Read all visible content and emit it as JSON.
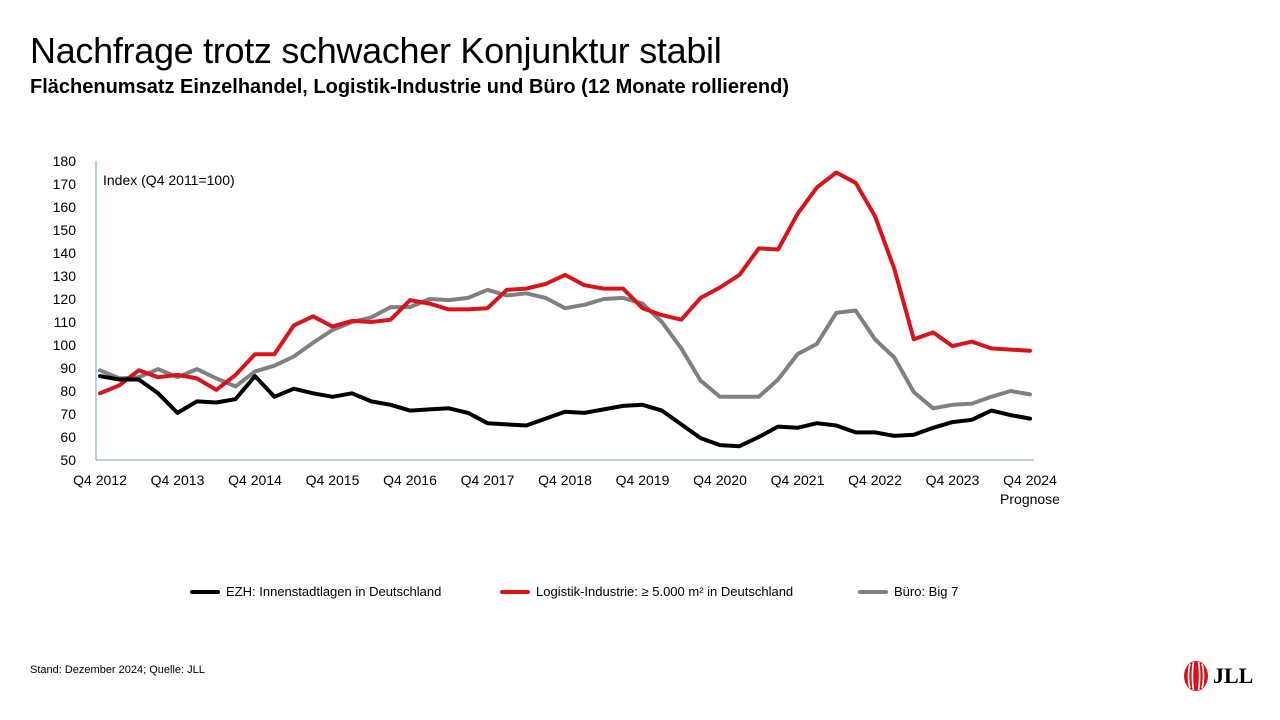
{
  "header": {
    "title": "Nachfrage trotz schwacher Konjunktur stabil",
    "subtitle": "Flächenumsatz Einzelhandel, Logistik-Industrie und Büro (12 Monate rollierend)"
  },
  "chart_data": {
    "type": "line",
    "annotation": "Index (Q4 2011=100)",
    "ylim": [
      50,
      180
    ],
    "yticks": [
      50,
      60,
      70,
      80,
      90,
      100,
      110,
      120,
      130,
      140,
      150,
      160,
      170,
      180
    ],
    "xticks": [
      {
        "label": "Q4 2012",
        "index": 0
      },
      {
        "label": "Q4 2013",
        "index": 4
      },
      {
        "label": "Q4 2014",
        "index": 8
      },
      {
        "label": "Q4 2015",
        "index": 12
      },
      {
        "label": "Q4 2016",
        "index": 16
      },
      {
        "label": "Q4 2017",
        "index": 20
      },
      {
        "label": "Q4 2018",
        "index": 24
      },
      {
        "label": "Q4 2019",
        "index": 28
      },
      {
        "label": "Q4 2020",
        "index": 32
      },
      {
        "label": "Q4 2021",
        "index": 36
      },
      {
        "label": "Q4 2022",
        "index": 40
      },
      {
        "label": "Q4 2023",
        "index": 44
      },
      {
        "label": "Q4 2024",
        "index": 48
      }
    ],
    "xtick_sublabel": "Prognose",
    "grid": false,
    "legend_position": "bottom",
    "series": [
      {
        "name": "EZH: Innenstadtlagen in Deutschland",
        "color": "#000000",
        "values": [
          86.5,
          85,
          85,
          79,
          70.5,
          75.5,
          75,
          76.5,
          86.5,
          77.5,
          81,
          79,
          77.5,
          79,
          75.5,
          74,
          71.5,
          72,
          72.5,
          70.5,
          66,
          65.5,
          65,
          68,
          71,
          70.5,
          72,
          73.5,
          74,
          71.5,
          65.5,
          59.5,
          56.5,
          56,
          60,
          64.5,
          64,
          66,
          65,
          62,
          62,
          60.5,
          61,
          64,
          66.5,
          67.5,
          71.5,
          69.5,
          68
        ]
      },
      {
        "name": "Logistik-Industrie: ≥ 5.000 m² in Deutschland",
        "color": "#d7141a",
        "values": [
          79,
          82.5,
          89,
          86,
          87,
          85.5,
          80.5,
          87,
          96,
          96,
          108.5,
          112.5,
          108,
          110.5,
          110,
          111,
          119.5,
          118,
          115.5,
          115.5,
          116,
          124,
          124.5,
          126.5,
          130.5,
          126,
          124.5,
          124.5,
          116,
          113,
          111,
          120.5,
          125,
          130.5,
          142,
          141.5,
          157,
          168.5,
          175,
          170.5,
          156,
          133,
          102.5,
          105.5,
          99.5,
          101.5,
          98.5,
          98,
          97.5
        ]
      },
      {
        "name": "Büro: Big 7",
        "color": "#808080",
        "values": [
          89,
          85.5,
          86,
          89.5,
          86,
          89.5,
          85.5,
          82,
          88.5,
          91,
          95,
          101,
          106.5,
          110,
          112,
          116.5,
          116.5,
          120,
          119.5,
          120.5,
          124,
          121.5,
          122.5,
          120.5,
          116,
          117.5,
          120,
          120.5,
          118,
          110,
          98.5,
          84.5,
          77.5,
          77.5,
          77.5,
          85,
          96,
          100.5,
          114,
          115,
          102.5,
          94.5,
          79.5,
          72.5,
          74,
          74.5,
          77.5,
          80,
          78.5
        ]
      }
    ]
  },
  "footer": {
    "source": "Stand: Dezember 2024; Quelle: JLL"
  },
  "logo": {
    "text": "JLL"
  }
}
